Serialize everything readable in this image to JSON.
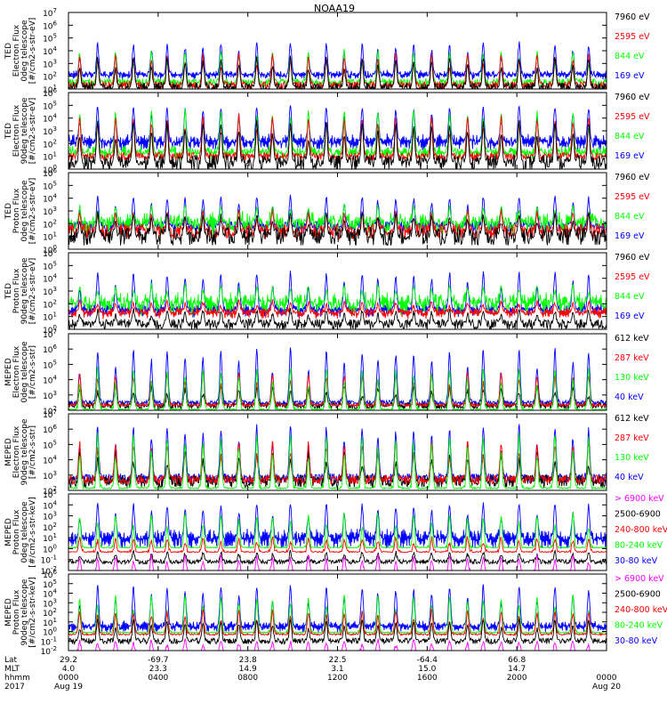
{
  "title": "NOAA19",
  "colors": {
    "blue": "#0000ff",
    "red": "#ff0000",
    "green": "#00ff00",
    "black": "#000000",
    "magenta": "#ff00ff"
  },
  "chart_data": {
    "type": "line",
    "title": "NOAA19",
    "x_axis": {
      "row_labels": [
        "Lat",
        "MLT",
        "hhmm",
        "2017"
      ],
      "ticks": [
        {
          "lat": "29.2",
          "mlt": "4.0",
          "hhmm": "0000",
          "date": "Aug 19"
        },
        {
          "lat": "-69.7",
          "mlt": "23.3",
          "hhmm": "0400",
          "date": ""
        },
        {
          "lat": "23.8",
          "mlt": "14.9",
          "hhmm": "0800",
          "date": ""
        },
        {
          "lat": "22.5",
          "mlt": "3.1",
          "hhmm": "1200",
          "date": ""
        },
        {
          "lat": "-64.4",
          "mlt": "15.0",
          "hhmm": "1600",
          "date": ""
        },
        {
          "lat": "66.8",
          "mlt": "14.7",
          "hhmm": "2000",
          "date": ""
        },
        {
          "lat": "",
          "mlt": "",
          "hhmm": "0000",
          "date": "Aug 20"
        }
      ]
    },
    "panels": [
      {
        "ylabel": [
          "TED",
          "Electron Flux",
          "0deg telescope",
          "[#/cm2-s-str-eV]"
        ],
        "y_log_range": [
          1,
          7
        ],
        "legend": [
          {
            "text": "7960 eV",
            "color": "#000000"
          },
          {
            "text": "2595 eV",
            "color": "#ff0000"
          },
          {
            "text": "844 eV",
            "color": "#00ff00"
          },
          {
            "text": "169 eV",
            "color": "#0000ff"
          }
        ],
        "series": [
          {
            "color": "#0000ff",
            "baseline": 2.1,
            "noise": 0.15,
            "peak": 4.6,
            "band": 0.25,
            "low_clip": 1
          },
          {
            "color": "#00ff00",
            "baseline": 1.5,
            "noise": 0.3,
            "peak": 4.0,
            "band": 0,
            "low_clip": 1
          },
          {
            "color": "#ff0000",
            "baseline": 1.3,
            "noise": 0.3,
            "peak": 3.8,
            "band": 0,
            "low_clip": 1
          },
          {
            "color": "#000000",
            "baseline": 1.1,
            "noise": 0.4,
            "peak": 3.5,
            "band": 0,
            "low_clip": 1
          }
        ]
      },
      {
        "ylabel": [
          "TED",
          "Electron Flux",
          "90deg telescope",
          "[#/cm2-s-str-eV]"
        ],
        "y_log_range": [
          0,
          6
        ],
        "legend": [
          {
            "text": "7960 eV",
            "color": "#000000"
          },
          {
            "text": "2595 eV",
            "color": "#ff0000"
          },
          {
            "text": "844 eV",
            "color": "#00ff00"
          },
          {
            "text": "169 eV",
            "color": "#0000ff"
          }
        ],
        "series": [
          {
            "color": "#0000ff",
            "baseline": 2.1,
            "noise": 0.2,
            "peak": 5.0,
            "band": 0.5,
            "low_clip": 0
          },
          {
            "color": "#00ff00",
            "baseline": 1.3,
            "noise": 0.3,
            "peak": 4.6,
            "band": 0.3,
            "low_clip": 0
          },
          {
            "color": "#ff0000",
            "baseline": 1.0,
            "noise": 0.3,
            "peak": 4.2,
            "band": 0,
            "low_clip": 0
          },
          {
            "color": "#000000",
            "baseline": 0.5,
            "noise": 0.6,
            "peak": 3.8,
            "band": 0,
            "low_clip": 0
          }
        ]
      },
      {
        "ylabel": [
          "TED",
          "Proton Flux",
          "0deg telescope",
          "[#/cm2-s-str-eV]"
        ],
        "y_log_range": [
          0,
          6
        ],
        "legend": [
          {
            "text": "7960 eV",
            "color": "#000000"
          },
          {
            "text": "2595 eV",
            "color": "#ff0000"
          },
          {
            "text": "844 eV",
            "color": "#00ff00"
          },
          {
            "text": "169 eV",
            "color": "#0000ff"
          }
        ],
        "series": [
          {
            "color": "#0000ff",
            "baseline": 1.8,
            "noise": 0.4,
            "peak": 4.2,
            "band": 0,
            "low_clip": 0
          },
          {
            "color": "#00ff00",
            "baseline": 2.0,
            "noise": 0.6,
            "peak": 3.4,
            "band": 0.4,
            "low_clip": 0
          },
          {
            "color": "#ff0000",
            "baseline": 1.4,
            "noise": 0.6,
            "peak": 3.0,
            "band": 0,
            "low_clip": 0
          },
          {
            "color": "#000000",
            "baseline": 1.0,
            "noise": 0.7,
            "peak": 2.8,
            "band": 0,
            "low_clip": 0
          }
        ]
      },
      {
        "ylabel": [
          "TED",
          "Proton Flux",
          "90deg telescope",
          "[#/cm2-s-str-eV]"
        ],
        "y_log_range": [
          0,
          6
        ],
        "legend": [
          {
            "text": "7960 eV",
            "color": "#000000"
          },
          {
            "text": "2595 eV",
            "color": "#ff0000"
          },
          {
            "text": "844 eV",
            "color": "#00ff00"
          },
          {
            "text": "169 eV",
            "color": "#0000ff"
          }
        ],
        "series": [
          {
            "color": "#0000ff",
            "baseline": 1.5,
            "noise": 0.2,
            "peak": 4.5,
            "band": 0.4,
            "low_clip": 0
          },
          {
            "color": "#00ff00",
            "baseline": 2.0,
            "noise": 0.5,
            "peak": 3.5,
            "band": 0.5,
            "low_clip": 0
          },
          {
            "color": "#ff0000",
            "baseline": 1.3,
            "noise": 0.2,
            "peak": 2.2,
            "band": 0.3,
            "low_clip": 0
          },
          {
            "color": "#000000",
            "baseline": 0.4,
            "noise": 0.4,
            "peak": 1.5,
            "band": 0,
            "low_clip": 0
          }
        ]
      },
      {
        "ylabel": [
          "MEPED",
          "Electron Flux",
          "0deg telescope",
          "[#/cm2-s-str]"
        ],
        "y_log_range": [
          2,
          7
        ],
        "legend": [
          {
            "text": "612 keV",
            "color": "#000000"
          },
          {
            "text": "287 keV",
            "color": "#ff0000"
          },
          {
            "text": "130 keV",
            "color": "#00ff00"
          },
          {
            "text": "40 keV",
            "color": "#0000ff"
          }
        ],
        "series": [
          {
            "color": "#0000ff",
            "baseline": 2.5,
            "noise": 0.15,
            "peak": 6.0,
            "band": 0,
            "low_clip": 2
          },
          {
            "color": "#000000",
            "baseline": 2.3,
            "noise": 0.2,
            "peak": 3.5,
            "band": 0,
            "low_clip": 2
          },
          {
            "color": "#ff0000",
            "baseline": 2.35,
            "noise": 0.1,
            "peak": 4.5,
            "band": 0,
            "low_clip": 2
          },
          {
            "color": "#00ff00",
            "baseline": 2.05,
            "noise": 0.05,
            "peak": 4.8,
            "band": 0,
            "low_clip": 2
          }
        ]
      },
      {
        "ylabel": [
          "MEPED",
          "Electron Flux",
          "90deg telescope",
          "[#/cm2-s-str]"
        ],
        "y_log_range": [
          2,
          7
        ],
        "legend": [
          {
            "text": "612 keV",
            "color": "#000000"
          },
          {
            "text": "287 keV",
            "color": "#ff0000"
          },
          {
            "text": "130 keV",
            "color": "#00ff00"
          },
          {
            "text": "40 keV",
            "color": "#0000ff"
          }
        ],
        "series": [
          {
            "color": "#0000ff",
            "baseline": 2.8,
            "noise": 0.3,
            "peak": 6.2,
            "band": 0,
            "low_clip": 2
          },
          {
            "color": "#000000",
            "baseline": 2.6,
            "noise": 0.4,
            "peak": 4.5,
            "band": 0,
            "low_clip": 2
          },
          {
            "color": "#ff0000",
            "baseline": 2.7,
            "noise": 0.3,
            "peak": 5.2,
            "band": 0,
            "low_clip": 2
          },
          {
            "color": "#00ff00",
            "baseline": 2.15,
            "noise": 0.05,
            "peak": 5.6,
            "band": 0,
            "low_clip": 2
          }
        ]
      },
      {
        "ylabel": [
          "MEPED",
          "Proton Flux",
          "0deg telescope",
          "[#/cm2-s-str-keV]"
        ],
        "y_log_range": [
          -2,
          5
        ],
        "legend": [
          {
            "text": "> 6900 keV",
            "color": "#ff00ff"
          },
          {
            "text": "2500-6900",
            "color": "#000000"
          },
          {
            "text": "240-800 keV",
            "color": "#ff0000"
          },
          {
            "text": "80-240 keV",
            "color": "#00ff00"
          },
          {
            "text": "30-80 keV",
            "color": "#0000ff"
          }
        ],
        "series": [
          {
            "color": "#0000ff",
            "baseline": 0.9,
            "noise": 0.15,
            "peak": 4.2,
            "band": 0.8,
            "low_clip": -2
          },
          {
            "color": "#00ff00",
            "baseline": 0.1,
            "noise": 0.05,
            "peak": 3.2,
            "band": 0,
            "low_clip": -2
          },
          {
            "color": "#ff0000",
            "baseline": -0.3,
            "noise": 0.05,
            "peak": 1.0,
            "band": 0,
            "low_clip": -2
          },
          {
            "color": "#000000",
            "baseline": -1.2,
            "noise": 0.2,
            "peak": -0.3,
            "band": 0,
            "low_clip": -2
          },
          {
            "color": "#ff00ff",
            "baseline": -2.2,
            "noise": 0.1,
            "peak": -0.6,
            "band": 0,
            "low_clip": -2
          }
        ]
      },
      {
        "ylabel": [
          "MEPED",
          "Proton Flux",
          "90deg telescope",
          "[#/cm2-s-str-keV]"
        ],
        "y_log_range": [
          -2,
          6
        ],
        "legend": [
          {
            "text": "> 6900 keV",
            "color": "#ff00ff"
          },
          {
            "text": "2500-6900",
            "color": "#000000"
          },
          {
            "text": "240-800 keV",
            "color": "#ff0000"
          },
          {
            "text": "80-240 keV",
            "color": "#00ff00"
          },
          {
            "text": "30-80 keV",
            "color": "#0000ff"
          }
        ],
        "series": [
          {
            "color": "#0000ff",
            "baseline": 0.5,
            "noise": 0.15,
            "peak": 4.8,
            "band": 0.5,
            "low_clip": -2
          },
          {
            "color": "#00ff00",
            "baseline": -0.1,
            "noise": 0.05,
            "peak": 3.8,
            "band": 0,
            "low_clip": -2
          },
          {
            "color": "#ff0000",
            "baseline": -0.3,
            "noise": 0.1,
            "peak": 2.2,
            "band": 0,
            "low_clip": -2
          },
          {
            "color": "#000000",
            "baseline": -1.0,
            "noise": 0.3,
            "peak": 1.2,
            "band": 0,
            "low_clip": -2
          },
          {
            "color": "#ff00ff",
            "baseline": -2.2,
            "noise": 0.1,
            "peak": -0.9,
            "band": 0,
            "low_clip": -2
          }
        ]
      }
    ],
    "orbit_peaks_hours": [
      0.5,
      1.3,
      2.1,
      2.9,
      3.7,
      4.4,
      5.2,
      6.0,
      6.8,
      7.6,
      8.4,
      9.1,
      9.9,
      10.7,
      11.5,
      12.3,
      13.1,
      13.8,
      14.6,
      15.4,
      16.2,
      17.0,
      17.8,
      18.5,
      19.3,
      20.1,
      20.9,
      21.7,
      22.5,
      23.2
    ]
  }
}
